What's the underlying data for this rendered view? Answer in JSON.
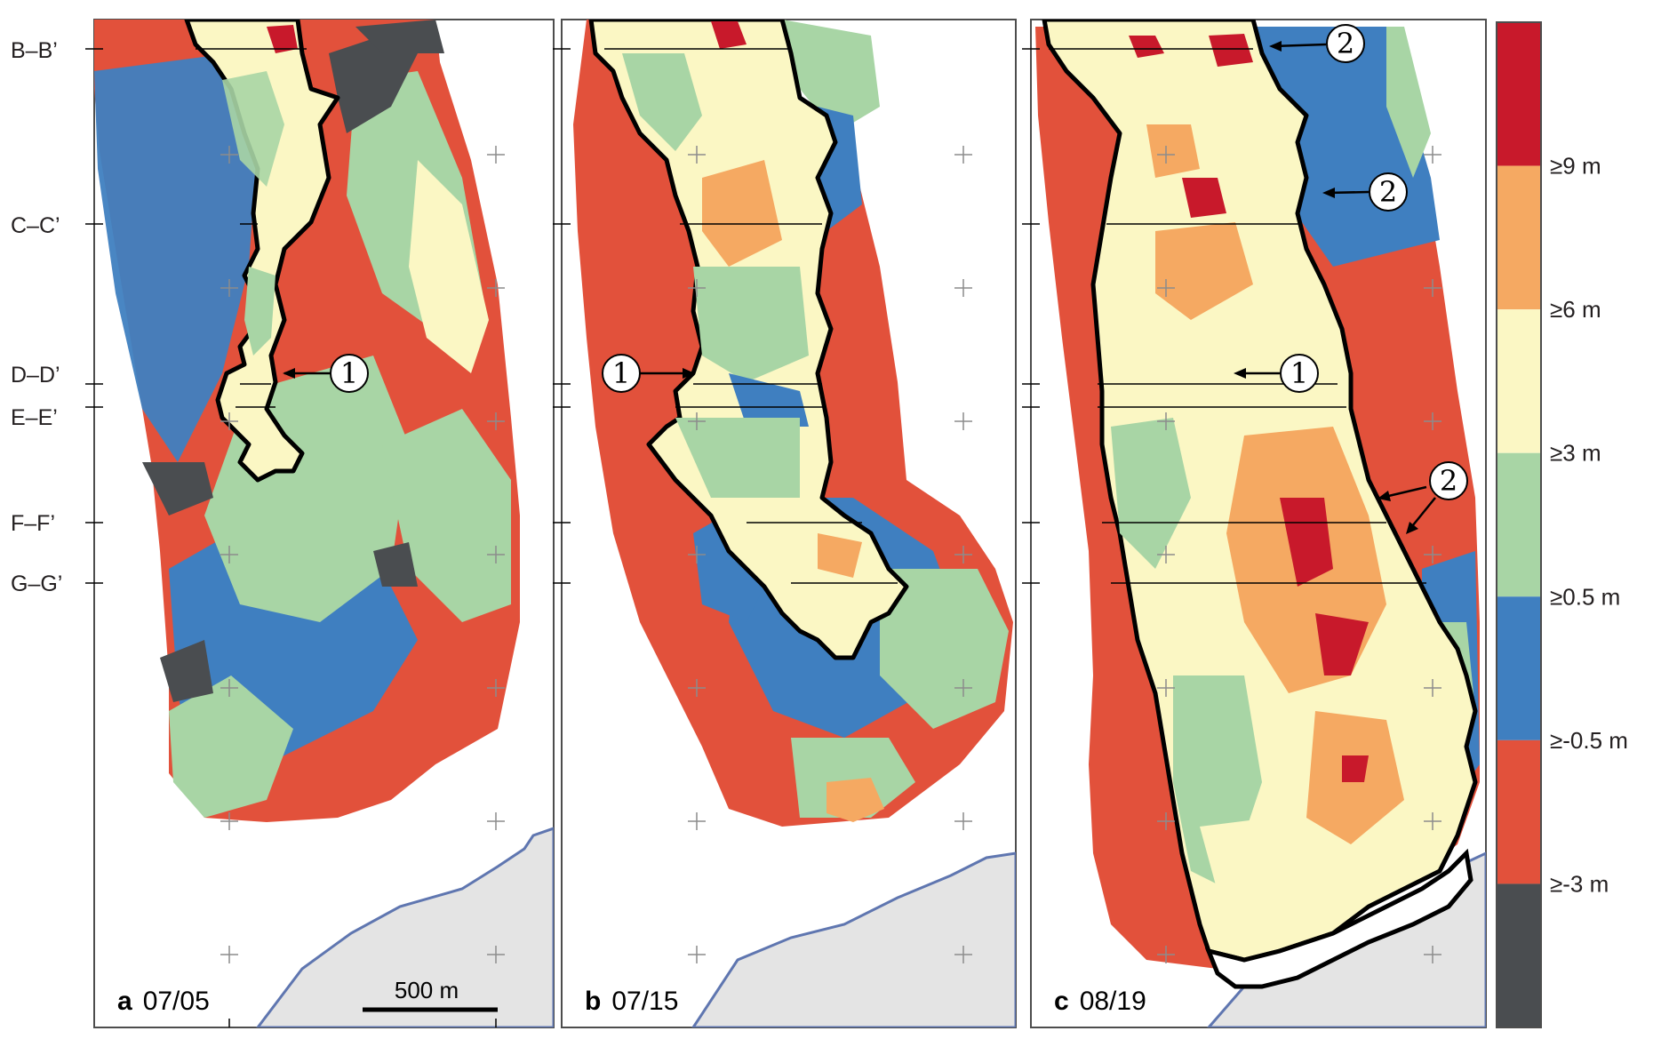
{
  "figure": {
    "profiles": [
      "B–B’",
      "C–C’",
      "D–D’",
      "E–E’",
      "F–F’",
      "G–G’"
    ],
    "panels": [
      {
        "letter": "a",
        "date": "07/05",
        "markers": [
          "1"
        ]
      },
      {
        "letter": "b",
        "date": "07/15",
        "markers": [
          "1"
        ]
      },
      {
        "letter": "c",
        "date": "08/19",
        "markers": [
          "2",
          "2",
          "1",
          "2"
        ]
      }
    ],
    "scale_bar": {
      "label": "500 m",
      "length_m": 500
    },
    "legend": {
      "bins": [
        {
          "label": "",
          "color": "#c8192b"
        },
        {
          "label": "≥9 m",
          "color": "#f5a962"
        },
        {
          "label": "≥6 m",
          "color": "#fbf7c4"
        },
        {
          "label": "≥3 m",
          "color": "#a8d5a5"
        },
        {
          "label": "≥0.5 m",
          "color": "#3f7fc0"
        },
        {
          "label": "≥-0.5 m",
          "color": "#e2513b"
        },
        {
          "label": "≥-3 m",
          "color": "#4a4d50"
        }
      ]
    },
    "colors": {
      "ocean": "#e4e4e4",
      "ocean_edge": "#5f76b0",
      "outline": "#000000",
      "graticule": "#8c8c8c"
    }
  }
}
